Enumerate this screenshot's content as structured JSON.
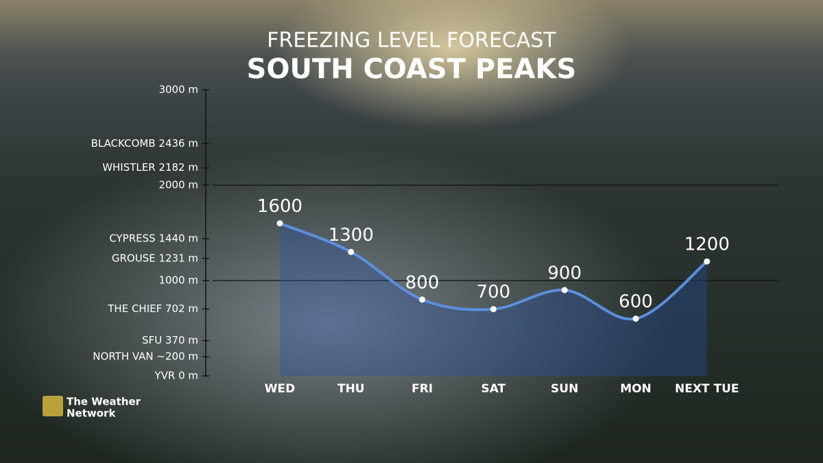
{
  "chart_data": {
    "type": "line",
    "title": "FREEZING LEVEL FORECAST",
    "subtitle": "SOUTH COAST PEAKS",
    "categories": [
      "WED",
      "THU",
      "FRI",
      "SAT",
      "SUN",
      "MON",
      "NEXT TUE"
    ],
    "values": [
      1600,
      1300,
      800,
      700,
      900,
      600,
      1200
    ],
    "color": "#5b8fe0",
    "ylim": [
      0,
      3000
    ],
    "yticks": [
      {
        "value": 0,
        "label": "YVR 0 m"
      },
      {
        "value": 200,
        "label": "NORTH VAN ~200 m"
      },
      {
        "value": 370,
        "label": "SFU 370 m"
      },
      {
        "value": 702,
        "label": "THE CHIEF 702 m"
      },
      {
        "value": 1000,
        "label": "1000 m"
      },
      {
        "value": 1231,
        "label": "GROUSE 1231 m"
      },
      {
        "value": 1440,
        "label": "CYPRESS 1440 m"
      },
      {
        "value": 2000,
        "label": "2000 m"
      },
      {
        "value": 2182,
        "label": "WHISTLER 2182 m"
      },
      {
        "value": 2436,
        "label": "BLACKCOMB 2436 m"
      },
      {
        "value": 3000,
        "label": "3000 m"
      }
    ],
    "grid_values": [
      1000,
      2000
    ],
    "area": true
  },
  "branding": {
    "lines": [
      "The Weather",
      "Network"
    ]
  }
}
